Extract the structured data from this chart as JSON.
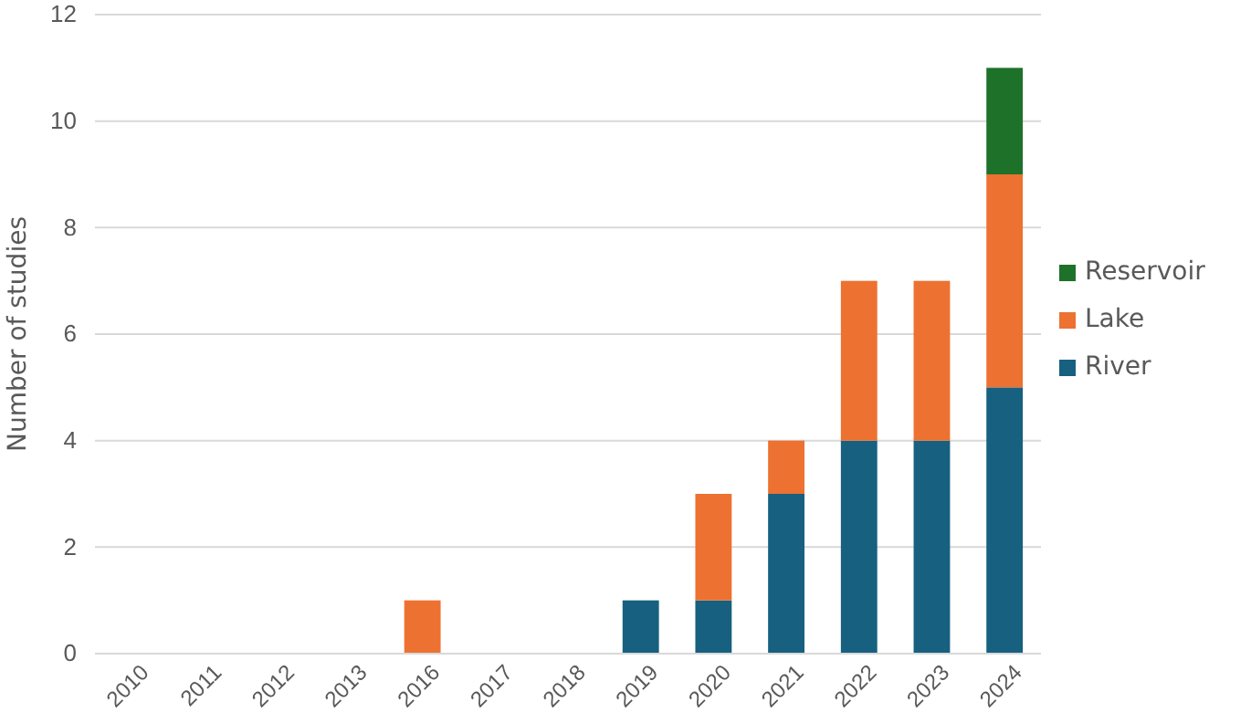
{
  "chart_data": {
    "type": "bar",
    "stacked": true,
    "ylabel": "Number of studies",
    "categories": [
      "2010",
      "2011",
      "2012",
      "2013",
      "2016",
      "2017",
      "2018",
      "2019",
      "2020",
      "2021",
      "2022",
      "2023",
      "2024"
    ],
    "series": [
      {
        "name": "River",
        "color": "#17607f",
        "values": [
          0,
          0,
          0,
          0,
          0,
          0,
          0,
          1,
          1,
          3,
          4,
          4,
          5
        ]
      },
      {
        "name": "Lake",
        "color": "#ed7130",
        "values": [
          0,
          0,
          0,
          0,
          1,
          0,
          0,
          0,
          2,
          1,
          3,
          3,
          4
        ]
      },
      {
        "name": "Reservoir",
        "color": "#1e7129",
        "values": [
          0,
          0,
          0,
          0,
          0,
          0,
          0,
          0,
          0,
          0,
          0,
          0,
          2
        ]
      }
    ],
    "ylim": [
      0,
      12
    ],
    "yticks": [
      0,
      2,
      4,
      6,
      8,
      10,
      12
    ],
    "grid": "y",
    "legend": "right"
  }
}
